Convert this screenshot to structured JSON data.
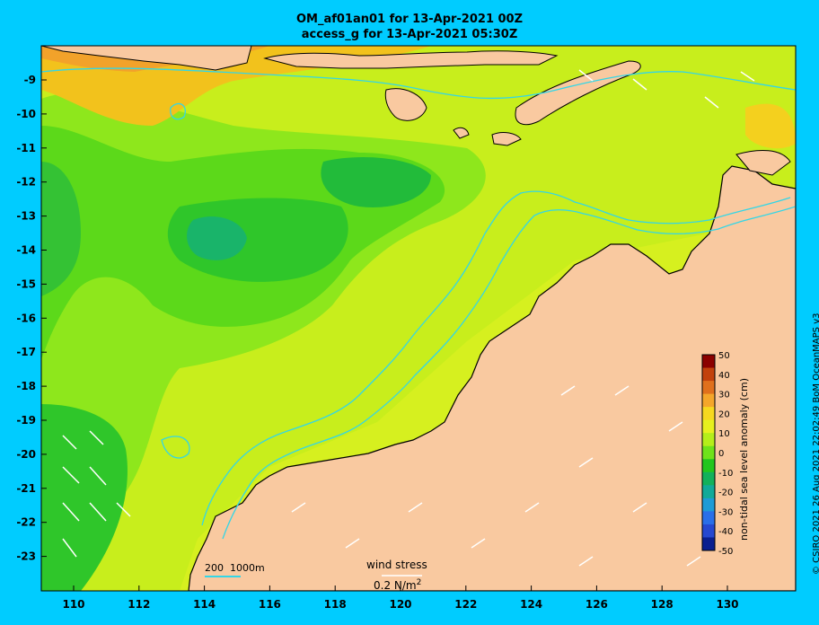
{
  "title_line1": "OM_af01an01 for 13-Apr-2021 00Z",
  "title_line2": "access_g for 13-Apr-2021 05:30Z",
  "credit": "© CSIRO 2021  26 Aug 2021 22:02:49 BoM OceanMAPS v3",
  "lat_ticks": [
    "-9",
    "-10",
    "-11",
    "-12",
    "-13",
    "-14",
    "-15",
    "-16",
    "-17",
    "-18",
    "-19",
    "-20",
    "-21",
    "-22",
    "-23"
  ],
  "lon_ticks": [
    "110",
    "112",
    "114",
    "116",
    "118",
    "120",
    "122",
    "124",
    "126",
    "128",
    "130"
  ],
  "colorbar": {
    "label": "non-tidal sea level anomaly (cm)",
    "ticks": [
      "50",
      "40",
      "30",
      "20",
      "10",
      "0",
      "-10",
      "-20",
      "-30",
      "-40",
      "-50"
    ],
    "colors": [
      "#8b0000",
      "#c2410c",
      "#e0701c",
      "#f4a62a",
      "#f6d81f",
      "#e6f01e",
      "#b5ee1a",
      "#6fe21a",
      "#22c61e",
      "#13b15b",
      "#11aa99",
      "#1e9bd6",
      "#2a6fe8",
      "#2648d0",
      "#0a1f8f"
    ]
  },
  "legend": {
    "depth_label_a": "200",
    "depth_label_b": "1000m",
    "wind_title": "wind stress",
    "wind_scale": "0.2 N/m",
    "wind_exp": "2"
  },
  "colors": {
    "land": "#f9c9a0",
    "contour": "#33d6e6"
  }
}
